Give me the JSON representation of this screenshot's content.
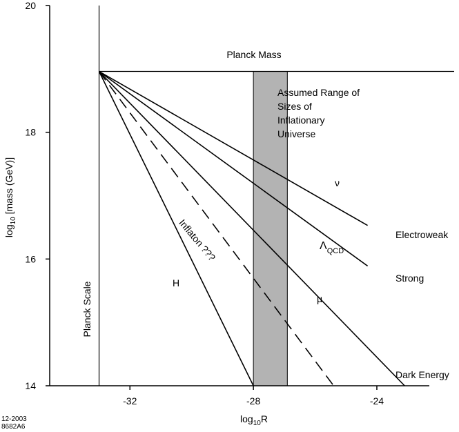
{
  "chart_data": {
    "type": "line",
    "xlabel": {
      "base": "log",
      "sub": "10",
      "rest": "R"
    },
    "ylabel": {
      "base": "log",
      "sub": "10",
      "rest": " [mass (GeV)]"
    },
    "xlim": [
      -34.6,
      -22.3
    ],
    "ylim": [
      14,
      20
    ],
    "x_ticks": [
      -32,
      -28,
      -24
    ],
    "y_ticks": [
      14,
      16,
      18,
      20
    ],
    "grid": false,
    "planck_scale": {
      "x": -33.0,
      "label": "Planck Scale"
    },
    "planck_mass": {
      "y": 18.96,
      "label": "Planck Mass"
    },
    "shaded_band": {
      "x": [
        -28.0,
        -26.9
      ],
      "color": "#b3b3b3",
      "label": [
        "Assumed Range of",
        "Sizes of",
        "Inflationary",
        "Universe"
      ]
    },
    "series": [
      {
        "name": "Electroweak",
        "style": "solid",
        "x": [
          -33.0,
          -24.3
        ],
        "y": [
          18.96,
          16.53
        ]
      },
      {
        "name": "Strong",
        "style": "solid",
        "x": [
          -33.0,
          -24.3
        ],
        "y": [
          18.96,
          15.89
        ]
      },
      {
        "name": "Dark Energy",
        "style": "solid",
        "x": [
          -33.0,
          -23.1
        ],
        "y": [
          18.96,
          14.0
        ]
      },
      {
        "name": "H",
        "style": "solid",
        "x": [
          -33.0,
          -28.0
        ],
        "y": [
          18.96,
          14.0
        ]
      },
      {
        "name": "Inflaton ???",
        "style": "dashed",
        "x": [
          -33.0,
          -25.4
        ],
        "y": [
          18.96,
          14.0
        ]
      }
    ],
    "annotations": {
      "nu": "ν",
      "lambda_qcd": {
        "base": "Λ",
        "sub": "QCD"
      },
      "mu": "μ",
      "h": "H",
      "inflaton": "Inflaton ???",
      "electroweak": "Electroweak",
      "strong": "Strong",
      "dark_energy": "Dark Energy"
    }
  },
  "footer": {
    "line1": "12-2003",
    "line2": "8682A6"
  },
  "colors": {
    "band": "#b3b3b3",
    "ink": "#000000"
  }
}
